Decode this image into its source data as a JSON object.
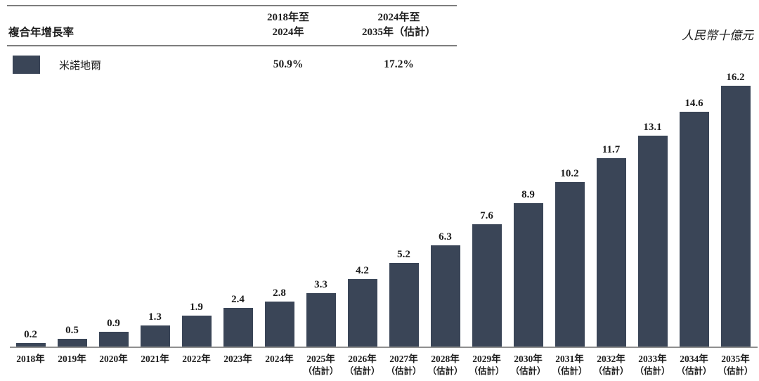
{
  "table": {
    "row_header": "複合年增長率",
    "col1_line1": "2018年至",
    "col1_line2": "2024年",
    "col2_line1": "2024年至",
    "col2_line2": "2035年（估計）",
    "series_label": "米諾地爾",
    "cagr_2018_2024": "50.9%",
    "cagr_2024_2035": "17.2%"
  },
  "chart_data": {
    "type": "bar",
    "series_name": "米諾地爾",
    "ylabel": "人民幣十億元",
    "categories": [
      "2018年",
      "2019年",
      "2020年",
      "2021年",
      "2022年",
      "2023年",
      "2024年",
      "2025年",
      "2026年",
      "2027年",
      "2028年",
      "2029年",
      "2030年",
      "2031年",
      "2032年",
      "2033年",
      "2034年",
      "2035年"
    ],
    "category_notes": [
      "",
      "",
      "",
      "",
      "",
      "",
      "",
      "（估計）",
      "（估計）",
      "（估計）",
      "（估計）",
      "（估計）",
      "（估計）",
      "（估計）",
      "（估計）",
      "（估計）",
      "（估計）",
      "（估計）"
    ],
    "values": [
      0.2,
      0.5,
      0.9,
      1.3,
      1.9,
      2.4,
      2.8,
      3.3,
      4.2,
      5.2,
      6.3,
      7.6,
      8.9,
      10.2,
      11.7,
      13.1,
      14.6,
      16.2
    ],
    "bar_color": "#3a4557",
    "ylim": [
      0,
      16.2
    ],
    "grid": "off",
    "legend_position": "top-left-table",
    "value_labels": "above-bars"
  }
}
